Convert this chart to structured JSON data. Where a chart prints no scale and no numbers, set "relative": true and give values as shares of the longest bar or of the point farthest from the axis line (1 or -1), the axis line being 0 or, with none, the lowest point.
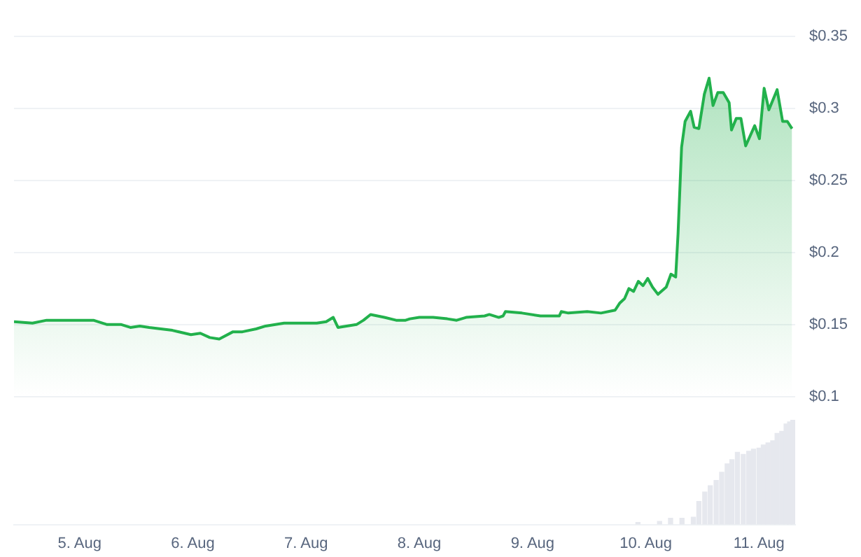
{
  "chart_data": [
    {
      "type": "area",
      "color": "#22b14c",
      "grid": "y",
      "tick_labels": "y",
      "xlim": [
        "--08-04T10:05",
        "--08-11T07:40"
      ],
      "ylim": [
        0.1,
        0.35
      ],
      "yticks": [
        {
          "value": 0.1,
          "label": "$0.1"
        },
        {
          "value": 0.15,
          "label": "$0.15"
        },
        {
          "value": 0.2,
          "label": "$0.2"
        },
        {
          "value": 0.25,
          "label": "$0.25"
        },
        {
          "value": 0.3,
          "label": "$0.3"
        },
        {
          "value": 0.35,
          "label": "$0.35"
        }
      ],
      "x": [
        "--08-04T10:05",
        "--08-04T14:00",
        "--08-04T17:00",
        "--08-05T02:55",
        "--08-05T05:50",
        "--08-05T08:50",
        "--08-05T10:45",
        "--08-05T12:45",
        "--08-05T14:45",
        "--08-05T19:40",
        "--08-05T23:35",
        "--08-06T01:35",
        "--08-06T03:35",
        "--08-06T05:35",
        "--08-06T08:30",
        "--08-06T10:30",
        "--08-06T13:25",
        "--08-06T15:25",
        "--08-06T19:20",
        "--08-07T02:15",
        "--08-07T04:15",
        "--08-07T05:45",
        "--08-07T06:45",
        "--08-07T10:40",
        "--08-07T12:10",
        "--08-07T13:40",
        "--08-07T16:35",
        "--08-07T19:05",
        "--08-07T21:05",
        "--08-07T22:00",
        "--08-08T00:00",
        "--08-08T02:55",
        "--08-08T05:55",
        "--08-08T07:55",
        "--08-08T09:55",
        "--08-08T13:50",
        "--08-08T14:50",
        "--08-08T16:50",
        "--08-08T17:45",
        "--08-08T18:15",
        "--08-08T21:45",
        "--08-09T01:40",
        "--08-09T05:40",
        "--08-09T06:05",
        "--08-09T07:35",
        "--08-09T11:35",
        "--08-09T14:30",
        "--08-09T17:30",
        "--08-09T18:30",
        "--08-09T19:30",
        "--08-09T20:25",
        "--08-09T21:25",
        "--08-09T22:25",
        "--08-09T23:25",
        "--08-10T00:25",
        "--08-10T01:25",
        "--08-10T02:35",
        "--08-10T04:20",
        "--08-10T05:20",
        "--08-10T06:20",
        "--08-10T06:50",
        "--08-10T07:35",
        "--08-10T08:20",
        "--08-10T09:30",
        "--08-10T10:15",
        "--08-10T11:15",
        "--08-10T12:25",
        "--08-10T13:25",
        "--08-10T14:15",
        "--08-10T15:15",
        "--08-10T16:25",
        "--08-10T17:40",
        "--08-10T18:10",
        "--08-10T19:10",
        "--08-10T20:10",
        "--08-10T21:10",
        "--08-10T23:05",
        "--08-11T00:05",
        "--08-11T01:05",
        "--08-11T02:05",
        "--08-11T03:50",
        "--08-11T05:00",
        "--08-11T06:00",
        "--08-11T07:00"
      ],
      "values": [
        0.152,
        0.151,
        0.153,
        0.153,
        0.15,
        0.15,
        0.148,
        0.149,
        0.148,
        0.146,
        0.143,
        0.144,
        0.141,
        0.14,
        0.145,
        0.145,
        0.147,
        0.149,
        0.151,
        0.151,
        0.152,
        0.155,
        0.148,
        0.15,
        0.153,
        0.157,
        0.155,
        0.153,
        0.153,
        0.154,
        0.155,
        0.155,
        0.154,
        0.153,
        0.155,
        0.156,
        0.157,
        0.155,
        0.156,
        0.159,
        0.158,
        0.156,
        0.156,
        0.159,
        0.158,
        0.159,
        0.158,
        0.16,
        0.165,
        0.168,
        0.175,
        0.173,
        0.18,
        0.177,
        0.182,
        0.176,
        0.171,
        0.176,
        0.185,
        0.183,
        0.213,
        0.273,
        0.291,
        0.298,
        0.287,
        0.286,
        0.31,
        0.321,
        0.302,
        0.311,
        0.311,
        0.304,
        0.285,
        0.293,
        0.293,
        0.274,
        0.288,
        0.279,
        0.314,
        0.299,
        0.313,
        0.291,
        0.291,
        0.286
      ]
    },
    {
      "type": "bar",
      "color": "#e6e8ee",
      "relative": true,
      "tick_labels": "x",
      "xlim": [
        "--08-04T10:05",
        "--08-11T07:40"
      ],
      "xticks": [
        {
          "value": "--08-05",
          "label": "5. Aug"
        },
        {
          "value": "--08-06",
          "label": "6. Aug"
        },
        {
          "value": "--08-07",
          "label": "7. Aug"
        },
        {
          "value": "--08-08",
          "label": "8. Aug"
        },
        {
          "value": "--08-09",
          "label": "9. Aug"
        },
        {
          "value": "--08-10",
          "label": "10. Aug"
        },
        {
          "value": "--08-11",
          "label": "11. Aug"
        }
      ],
      "x": [
        "--08-09T22:20",
        "--08-10T02:55",
        "--08-10T05:15",
        "--08-10T07:40",
        "--08-10T10:05",
        "--08-10T11:15",
        "--08-10T12:30",
        "--08-10T13:40",
        "--08-10T14:55",
        "--08-10T16:05",
        "--08-10T17:15",
        "--08-10T18:15",
        "--08-10T19:25",
        "--08-10T20:40",
        "--08-10T21:50",
        "--08-10T22:50",
        "--08-11T00:00",
        "--08-11T00:55",
        "--08-11T01:55",
        "--08-11T02:55",
        "--08-11T03:50",
        "--08-11T04:50",
        "--08-11T05:45",
        "--08-11T06:30",
        "--08-11T07:10"
      ],
      "values": [
        0.02,
        0.03,
        0.06,
        0.06,
        0.07,
        0.22,
        0.31,
        0.37,
        0.42,
        0.5,
        0.58,
        0.62,
        0.69,
        0.67,
        0.7,
        0.72,
        0.73,
        0.76,
        0.78,
        0.8,
        0.87,
        0.89,
        0.96,
        0.98,
        1
      ]
    }
  ]
}
